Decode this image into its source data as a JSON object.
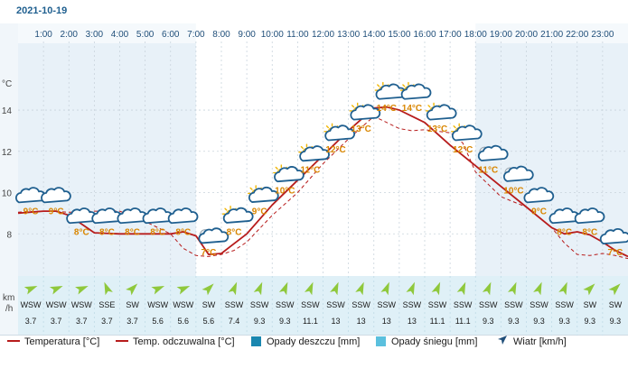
{
  "date": "2021-10-19",
  "chart_data": {
    "type": "line",
    "hours": [
      "1:00",
      "2:00",
      "3:00",
      "4:00",
      "5:00",
      "6:00",
      "7:00",
      "8:00",
      "9:00",
      "10:00",
      "11:00",
      "12:00",
      "13:00",
      "14:00",
      "15:00",
      "16:00",
      "17:00",
      "18:00",
      "19:00",
      "20:00",
      "21:00",
      "22:00",
      "23:00"
    ],
    "y_unit_label": "°C",
    "y_ticks": [
      8,
      10,
      12,
      14
    ],
    "ylim": [
      6.0,
      17.5
    ],
    "series": [
      {
        "name": "Temperatura [°C]",
        "color": "#b71c1c",
        "style": "solid",
        "x": [
          0,
          0.5,
          1,
          1.5,
          2,
          3,
          4,
          5,
          6,
          6.5,
          7,
          7.5,
          8,
          9,
          10,
          11,
          12,
          13,
          14,
          14.5,
          15,
          16,
          17,
          18,
          19,
          20,
          21,
          21.5,
          22,
          22.5,
          23,
          23.5,
          24
        ],
        "values": [
          9.0,
          9.05,
          9.1,
          9.1,
          8.9,
          8.05,
          8.0,
          8.0,
          8.0,
          8.1,
          7.9,
          7.0,
          7.05,
          8.0,
          9.4,
          10.6,
          11.8,
          13.0,
          14.1,
          14.15,
          14.0,
          13.4,
          12.3,
          11.3,
          10.3,
          9.3,
          8.3,
          8.0,
          8.1,
          7.95,
          7.6,
          7.2,
          6.9
        ]
      },
      {
        "name": "Temp. odczuwalna [°C]",
        "color": "#b71c1c",
        "style": "dashed",
        "x": [
          0,
          1,
          2,
          2.5,
          3,
          4,
          5,
          6,
          6.5,
          7,
          7.5,
          8,
          8.5,
          9,
          10,
          11,
          12,
          13,
          14,
          15,
          15.5,
          16,
          17,
          17.5,
          18,
          19,
          20,
          21,
          21.5,
          22,
          22.5,
          23,
          23.5,
          24
        ],
        "values": [
          9.05,
          9.1,
          9.05,
          9.05,
          9.1,
          9.1,
          8.6,
          8.0,
          7.3,
          6.95,
          6.9,
          7.0,
          7.2,
          7.6,
          8.9,
          10.0,
          11.4,
          12.6,
          13.7,
          13.1,
          13.0,
          13.05,
          12.9,
          12.4,
          11.0,
          9.8,
          9.3,
          8.3,
          7.55,
          7.0,
          6.95,
          7.05,
          6.95,
          6.8
        ]
      }
    ],
    "icon_labels": [
      "9°C",
      "9°C",
      "8°C",
      "8°C",
      "8°C",
      "8°C",
      "8°C",
      "7°C",
      "8°C",
      "9°C",
      "10°C",
      "11°C",
      "12°C",
      "13°C",
      "14°C",
      "14°C",
      "13°C",
      "12°C",
      "11°C",
      "10°C",
      "9°C",
      "8°C",
      "8°C",
      "7°C"
    ],
    "icon_labels_value": [
      9,
      9,
      8,
      8,
      8,
      8,
      8,
      7,
      8,
      9,
      10,
      11,
      12,
      13,
      14,
      14,
      13,
      12,
      11,
      10,
      9,
      8,
      8,
      7
    ],
    "icons": [
      "cloud",
      "cloud",
      "cloud",
      "cloud",
      "cloud",
      "cloud",
      "cloud",
      "night-partly-cloudy",
      "sun-cloud",
      "sun-cloud",
      "sun-cloud",
      "sun-cloud",
      "sun-cloud",
      "sun-cloud",
      "sun-cloud",
      "sun-cloud",
      "sun-cloud",
      "sun-cloud",
      "night-partly-cloudy",
      "night-partly-cloudy",
      "cloud",
      "cloud",
      "cloud",
      "cloud"
    ],
    "wind_dirs": [
      "WSW",
      "WSW",
      "WSW",
      "SSE",
      "SW",
      "WSW",
      "WSW",
      "SW",
      "SSW",
      "SSW",
      "SSW",
      "SSW",
      "SSW",
      "SSW",
      "SSW",
      "SSW",
      "SSW",
      "SSW",
      "SSW",
      "SSW",
      "SSW",
      "SSW",
      "SW",
      "SW"
    ],
    "wind_deg": [
      247.5,
      247.5,
      247.5,
      157.5,
      225,
      247.5,
      247.5,
      225,
      202.5,
      202.5,
      202.5,
      202.5,
      202.5,
      202.5,
      202.5,
      202.5,
      202.5,
      202.5,
      202.5,
      202.5,
      202.5,
      202.5,
      225,
      225
    ],
    "wind_speeds": [
      "3.7",
      "3.7",
      "3.7",
      "3.7",
      "3.7",
      "5.6",
      "5.6",
      "5.6",
      "7.4",
      "9.3",
      "9.3",
      "11.1",
      "13",
      "13",
      "13",
      "13",
      "11.1",
      "11.1",
      "9.3",
      "9.3",
      "9.3",
      "9.3",
      "9.3",
      "9.3"
    ],
    "wind_unit_top": "km",
    "wind_unit_bottom": "/h",
    "night_before_hour": 7,
    "night_after_hour": 18,
    "grid": true
  },
  "legend": {
    "temperature": "Temperatura [°C]",
    "feels_like": "Temp. odczuwalna [°C]",
    "rain": "Opady deszczu [mm]",
    "snow": "Opady śniegu [mm]",
    "wind": "Wiatr [km/h]"
  },
  "colors": {
    "line": "#b71c1c",
    "label": "#d98600",
    "night": "#e8f1f8",
    "day": "#ffffff",
    "wind_bg": "#dff0f7",
    "arrow": "#8fc83c",
    "rain": "#1a87b0",
    "snow": "#5bc0de",
    "wind_legend": "#1f4e79",
    "hour_text": "#1f4e79"
  }
}
